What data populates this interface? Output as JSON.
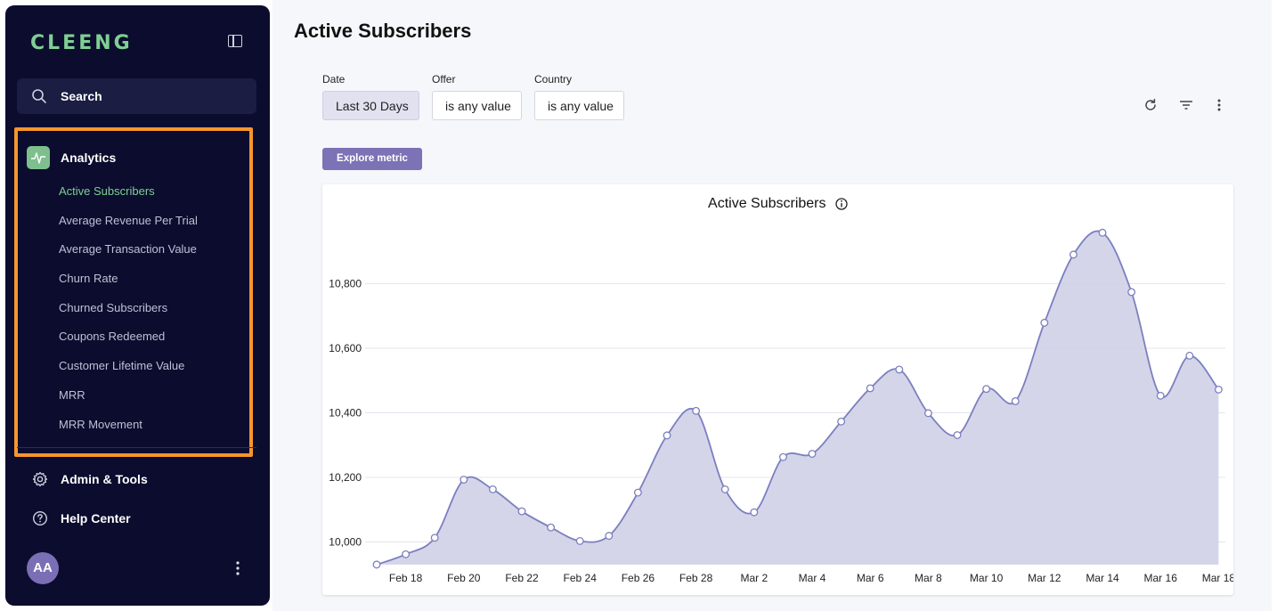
{
  "sidebar": {
    "logo": "CLEENG",
    "search_label": "Search",
    "analytics_label": "Analytics",
    "analytics_items": [
      {
        "label": "Active Subscribers",
        "active": true
      },
      {
        "label": "Average Revenue Per Trial"
      },
      {
        "label": "Average Transaction Value"
      },
      {
        "label": "Churn Rate"
      },
      {
        "label": "Churned Subscribers"
      },
      {
        "label": "Coupons Redeemed"
      },
      {
        "label": "Customer Lifetime Value"
      },
      {
        "label": "MRR"
      },
      {
        "label": "MRR Movement"
      }
    ],
    "admin_label": "Admin & Tools",
    "help_label": "Help Center",
    "avatar_initials": "AA"
  },
  "main": {
    "title": "Active Subscribers",
    "filters": [
      {
        "label": "Date",
        "value": "Last 30 Days"
      },
      {
        "label": "Offer",
        "value": "is any value"
      },
      {
        "label": "Country",
        "value": "is any value"
      }
    ],
    "explore_label": "Explore metric"
  },
  "colors": {
    "sidebar_bg": "#0b0c2e",
    "accent_green": "#7fcf93",
    "highlight_orange": "#f7962b",
    "chart_line": "#7b7fc0",
    "chart_fill": "#cfd0e6"
  },
  "chart_data": {
    "type": "area",
    "title": "Active Subscribers",
    "xlabel": "",
    "ylabel": "",
    "ylim": [
      9930,
      11100
    ],
    "yticks": [
      10000,
      10200,
      10400,
      10600,
      10800
    ],
    "ytick_labels": [
      "10,000",
      "10,200",
      "10,400",
      "10,600",
      "10,800"
    ],
    "grid": true,
    "x": [
      "Feb 17",
      "Feb 18",
      "Feb 19",
      "Feb 20",
      "Feb 21",
      "Feb 22",
      "Feb 23",
      "Feb 24",
      "Feb 25",
      "Feb 26",
      "Feb 27",
      "Feb 28",
      "Mar 1",
      "Mar 2",
      "Mar 3",
      "Mar 4",
      "Mar 5",
      "Mar 6",
      "Mar 7",
      "Mar 8",
      "Mar 9",
      "Mar 10",
      "Mar 11",
      "Mar 12",
      "Mar 13",
      "Mar 14",
      "Mar 15",
      "Mar 16",
      "Mar 17",
      "Mar 18"
    ],
    "xtick_labels": [
      "Feb 18",
      "Feb 20",
      "Feb 22",
      "Feb 24",
      "Feb 26",
      "Feb 28",
      "Mar 2",
      "Mar 4",
      "Mar 6",
      "Mar 8",
      "Mar 10",
      "Mar 12",
      "Mar 14",
      "Mar 16",
      "Mar 18"
    ],
    "series": [
      {
        "values": [
          9930,
          9962,
          10013,
          10193,
          10163,
          10095,
          10045,
          10003,
          10019,
          10153,
          10330,
          10406,
          10163,
          10092,
          10263,
          10273,
          10373,
          10476,
          10534,
          10399,
          10331,
          10474,
          10436,
          10679,
          10890,
          10958,
          10774,
          10453,
          10577,
          10472
        ]
      }
    ]
  }
}
